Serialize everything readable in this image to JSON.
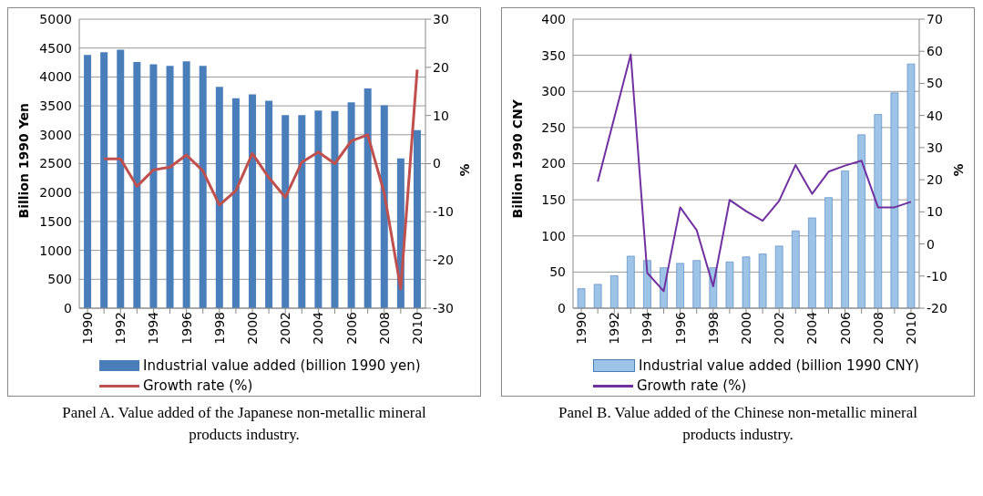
{
  "chart_data": [
    {
      "type": "bar",
      "title": "Panel A. Value added of the Japanese non-metallic mineral products industry.",
      "ylabel": "Billion 1990 Yen",
      "y2label": "%",
      "categories": [
        "1990",
        null,
        "1992",
        null,
        "1994",
        null,
        "1996",
        null,
        "1998",
        null,
        "2000",
        null,
        "2002",
        null,
        "2004",
        null,
        "2006",
        null,
        "2008",
        null,
        "2010"
      ],
      "series": [
        {
          "name": "Industrial value added (billion 1990 yen)",
          "color": "#4a7ebb",
          "values": [
            4380,
            4430,
            4470,
            4260,
            4220,
            4190,
            4270,
            4190,
            3830,
            3630,
            3700,
            3590,
            3340,
            3340,
            3420,
            3410,
            3560,
            3800,
            3510,
            2590,
            3080
          ]
        },
        {
          "name": "Growth rate (%)",
          "type": "line",
          "axis": "y2",
          "color": "#c0504d",
          "values": [
            null,
            1,
            1,
            -4.7,
            -1.3,
            -0.7,
            1.8,
            -1.5,
            -8.6,
            -5.6,
            2.1,
            -2.9,
            -7,
            0.3,
            2.4,
            0,
            4.7,
            6,
            -6.1,
            -26,
            19.5
          ]
        }
      ],
      "ylim": [
        0,
        5000
      ],
      "yticks": [
        0,
        500,
        1000,
        1500,
        2000,
        2500,
        3000,
        3500,
        4000,
        4500,
        5000
      ],
      "y2lim": [
        -30,
        30
      ],
      "y2ticks": [
        -30,
        -20,
        -10,
        0,
        10,
        20,
        30
      ],
      "grid": "y",
      "legend": "bottom",
      "marker": "none"
    },
    {
      "type": "bar",
      "title": "Panel B. Value added of the Chinese non-metallic mineral products industry.",
      "ylabel": "Billion 1990 CNY",
      "y2label": "%",
      "categories": [
        "1990",
        null,
        "1992",
        null,
        "1994",
        null,
        "1996",
        null,
        "1998",
        null,
        "2000",
        null,
        "2002",
        null,
        "2004",
        null,
        "2006",
        null,
        "2008",
        null,
        "2010"
      ],
      "series": [
        {
          "name": "Industrial value added (billion 1990 CNY)",
          "color": "#9dc3e6",
          "values": [
            27,
            33,
            45,
            72,
            66,
            56,
            62,
            66,
            56,
            64,
            71,
            75,
            86,
            107,
            125,
            153,
            190,
            240,
            268,
            298,
            338
          ]
        },
        {
          "name": "Growth rate (%)",
          "type": "line",
          "axis": "y2",
          "color": "#7030a0",
          "values": [
            null,
            19.4,
            39.3,
            59,
            -9,
            -14.7,
            11.4,
            4.3,
            -13.2,
            13.7,
            10.2,
            7.2,
            13.4,
            24.6,
            15.6,
            22.5,
            24.4,
            25.9,
            11.4,
            11.4,
            13.1
          ]
        }
      ],
      "ylim": [
        0,
        400
      ],
      "yticks": [
        0,
        50,
        100,
        150,
        200,
        250,
        300,
        350,
        400
      ],
      "y2lim": [
        -20,
        70
      ],
      "y2ticks": [
        -20,
        -10,
        0,
        10,
        20,
        30,
        40,
        50,
        60,
        70
      ],
      "grid": "y",
      "legend": "bottom",
      "marker": "none"
    }
  ]
}
